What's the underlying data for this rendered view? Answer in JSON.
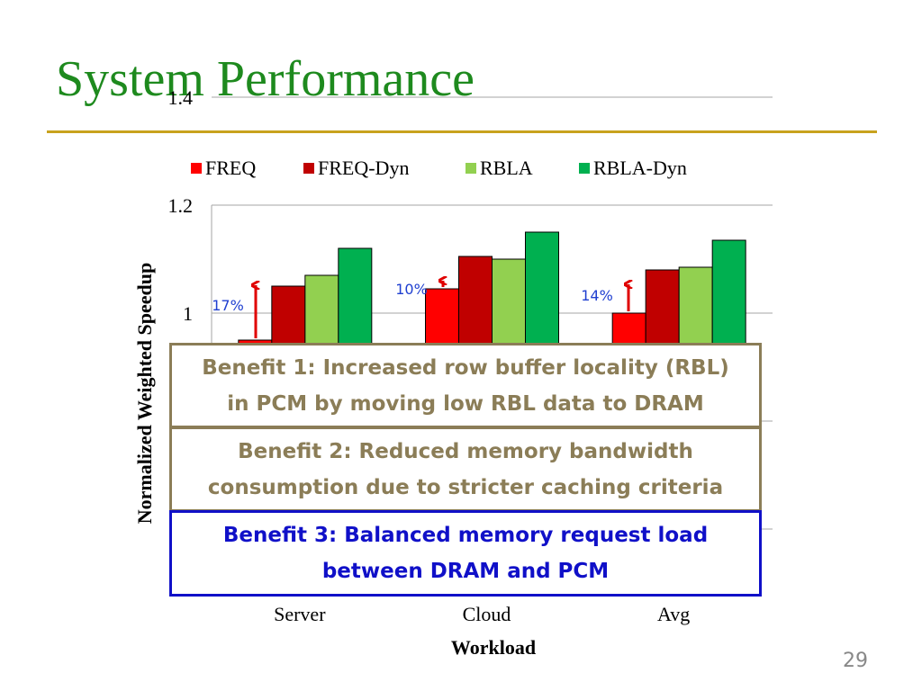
{
  "slide": {
    "title": "System Performance",
    "page_number": "29"
  },
  "chart_data": {
    "type": "bar",
    "categories": [
      "Server",
      "Cloud",
      "Avg"
    ],
    "series": [
      {
        "name": "FREQ",
        "values": [
          0.95,
          1.045,
          1.0
        ],
        "color": "#ff0000"
      },
      {
        "name": "FREQ-Dyn",
        "values": [
          1.05,
          1.105,
          1.08
        ],
        "color": "#c00000"
      },
      {
        "name": "RBLA",
        "values": [
          1.07,
          1.1,
          1.085
        ],
        "color": "#92d050"
      },
      {
        "name": "RBLA-Dyn",
        "values": [
          1.12,
          1.15,
          1.135
        ],
        "color": "#00b050"
      }
    ],
    "title": "",
    "xlabel": "Workload",
    "ylabel": "Normalized Weighted Speedup",
    "ylim": [
      0,
      1.4
    ],
    "yticks": [
      "1.4",
      "1.2",
      "1"
    ],
    "grid": true,
    "legend": "top",
    "annotations": [
      "17%",
      "10%",
      "14%"
    ],
    "annotation_color": "#1f3fd0"
  },
  "benefits": [
    {
      "line1": "Benefit 1: Increased row buffer locality (RBL)",
      "line2": "in PCM by moving low RBL data to DRAM"
    },
    {
      "line1": "Benefit 2: Reduced memory bandwidth",
      "line2": "consumption due to stricter caching criteria"
    },
    {
      "line1": "Benefit 3: Balanced memory request load",
      "line2": "between DRAM and PCM"
    }
  ]
}
